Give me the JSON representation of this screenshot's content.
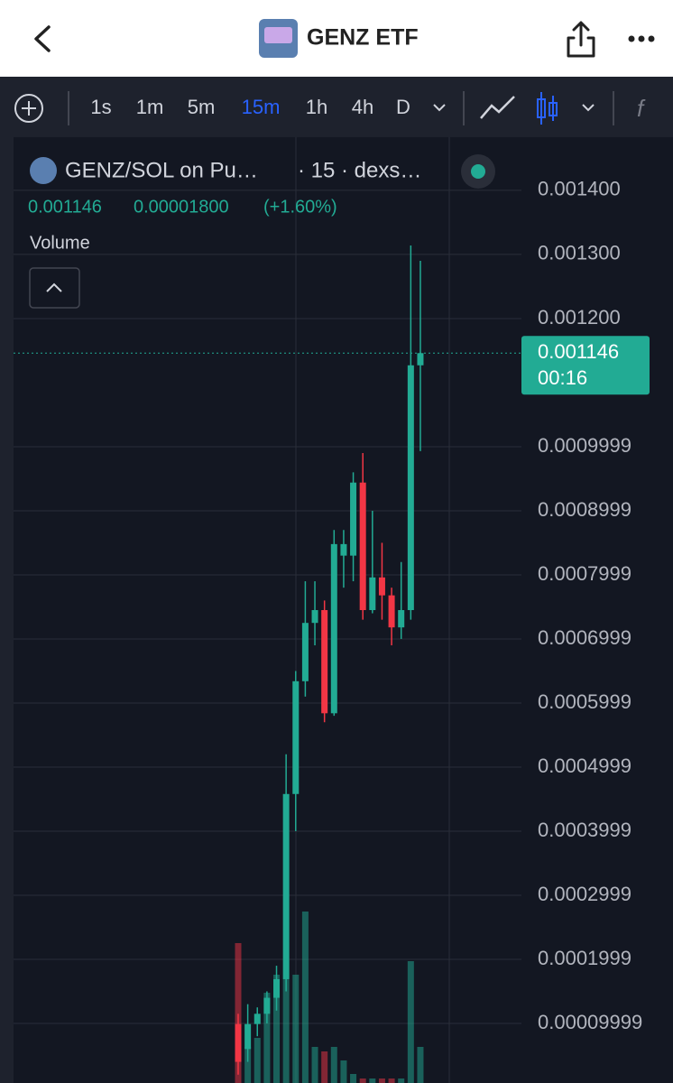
{
  "header": {
    "title": "GENZ ETF"
  },
  "toolbar": {
    "intervals": [
      "1s",
      "1m",
      "5m",
      "15m",
      "1h",
      "4h",
      "D"
    ],
    "active_interval": "15m"
  },
  "legend": {
    "symbol": "GENZ/SOL on Pu…",
    "details": "· 15 · dexs…",
    "change": "0.00001800",
    "change_pct": "(+1.60%)",
    "study": "Volume"
  },
  "chart_data": {
    "type": "candlestick",
    "ylim": [
      7e-06,
      0.001483
    ],
    "yticks": [
      {
        "value": 0.0014,
        "label": "0.001400"
      },
      {
        "value": 0.0013,
        "label": "0.001300"
      },
      {
        "value": 0.0012,
        "label": "0.001200"
      },
      0.0009999,
      0.0008999,
      0.0007999,
      0.0006999,
      0.0005999,
      0.0004999,
      0.0003999,
      0.0002999,
      0.0001999,
      9.999e-05
    ],
    "open": [
      9.9e-05,
      6e-05,
      9.9e-05,
      0.000115,
      0.00014,
      0.000169,
      0.000458,
      0.000634,
      0.000725,
      0.000745,
      0.000584,
      0.00083,
      0.00083,
      0.000944,
      0.000745,
      0.000796,
      0.000768,
      0.000718,
      0.000745,
      0.001127
    ],
    "high": [
      0.000115,
      0.00013,
      0.000125,
      0.00015,
      0.00019,
      0.00052,
      0.00065,
      0.00079,
      0.00079,
      0.00076,
      0.00087,
      0.00087,
      0.00096,
      0.00099,
      0.0009,
      0.00085,
      0.00078,
      0.00082,
      0.001314,
      0.00129
    ],
    "low": [
      2e-05,
      4e-05,
      8e-05,
      0.0001,
      0.00012,
      0.00015,
      0.0004,
      0.00061,
      0.00069,
      0.00057,
      0.00058,
      0.00078,
      0.00079,
      0.00073,
      0.00074,
      0.00073,
      0.00069,
      0.0007,
      0.00073,
      0.000993
    ],
    "close": [
      4e-05,
      9.9e-05,
      0.000115,
      0.00014,
      0.000169,
      0.000458,
      0.000634,
      0.000725,
      0.000745,
      0.000584,
      0.000848,
      0.000848,
      0.000944,
      0.000745,
      0.000796,
      0.000768,
      0.000718,
      0.000745,
      0.001127,
      0.001146
    ],
    "volume": [
      155,
      40,
      50,
      100,
      120,
      115,
      120,
      190,
      40,
      35,
      40,
      25,
      10,
      5,
      5,
      5,
      5,
      5,
      135,
      40
    ],
    "up_color": "#22ab94",
    "down_color": "#f23645",
    "last_price": 0.001146,
    "countdown": "00:16",
    "grid": true
  }
}
